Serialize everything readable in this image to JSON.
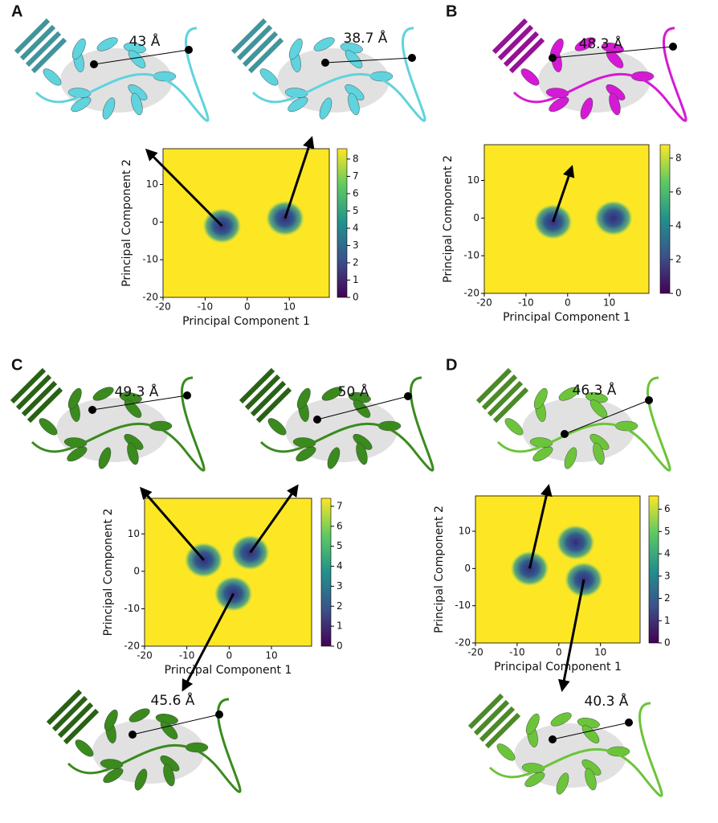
{
  "chart_data": [
    {
      "type": "heatmap",
      "panel": "A",
      "xlabel": "Principal Component 1",
      "ylabel": "Principal Component 2",
      "xlim": [
        -20,
        19.5
      ],
      "ylim": [
        -20,
        19.5
      ],
      "xticks": [
        -20,
        -10,
        0,
        10
      ],
      "yticks": [
        -20,
        -10,
        0,
        10
      ],
      "clim": [
        0,
        8.6
      ],
      "cticks": [
        0,
        1,
        2,
        3,
        4,
        5,
        6,
        7,
        8
      ],
      "color": "#fde725",
      "structure_color": "#5fd3de",
      "basins": {
        "x": [
          -6,
          9
        ],
        "y": [
          -1,
          1
        ]
      },
      "annotations": [
        "43 Å",
        "38.7 Å"
      ]
    },
    {
      "type": "heatmap",
      "panel": "B",
      "xlabel": "Principal Component 1",
      "ylabel": "Principal Component 2",
      "xlim": [
        -20,
        19.5
      ],
      "ylim": [
        -20,
        19.5
      ],
      "xticks": [
        -20,
        -10,
        0,
        10
      ],
      "yticks": [
        -20,
        -10,
        0,
        10
      ],
      "clim": [
        0,
        8.8
      ],
      "cticks": [
        0,
        2,
        4,
        6,
        8
      ],
      "color": "#fde725",
      "structure_color": "#d41ad4",
      "basins": {
        "x": [
          -3.5,
          11
        ],
        "y": [
          -1,
          0
        ]
      },
      "annotations": [
        "48.3 Å"
      ]
    },
    {
      "type": "heatmap",
      "panel": "C",
      "xlabel": "Principal Component 1",
      "ylabel": "Principal Component 2",
      "xlim": [
        -20,
        19.5
      ],
      "ylim": [
        -20,
        19.5
      ],
      "xticks": [
        -20,
        -10,
        0,
        10
      ],
      "yticks": [
        -20,
        -10,
        0,
        10
      ],
      "clim": [
        0,
        7.4
      ],
      "cticks": [
        0,
        1,
        2,
        3,
        4,
        5,
        6,
        7
      ],
      "color": "#fde725",
      "structure_color": "#3a8a1e",
      "basins": {
        "x": [
          -6,
          5,
          1
        ],
        "y": [
          3,
          5,
          -6
        ]
      },
      "annotations": [
        "49.3 Å",
        "50 Å",
        "45.6 Å"
      ]
    },
    {
      "type": "heatmap",
      "panel": "D",
      "xlabel": "Principal Component 1",
      "ylabel": "Principal Component 2",
      "xlim": [
        -20,
        19.5
      ],
      "ylim": [
        -20,
        19.5
      ],
      "xticks": [
        -20,
        -10,
        0,
        10
      ],
      "yticks": [
        -20,
        -10,
        0,
        10
      ],
      "clim": [
        0,
        6.6
      ],
      "cticks": [
        0,
        1,
        2,
        3,
        4,
        5,
        6
      ],
      "color": "#fde725",
      "structure_color": "#6cc43a",
      "basins": {
        "x": [
          -7,
          4,
          6
        ],
        "y": [
          0,
          7,
          -3
        ]
      },
      "annotations": [
        "46.3 Å",
        "40.3 Å"
      ]
    }
  ]
}
